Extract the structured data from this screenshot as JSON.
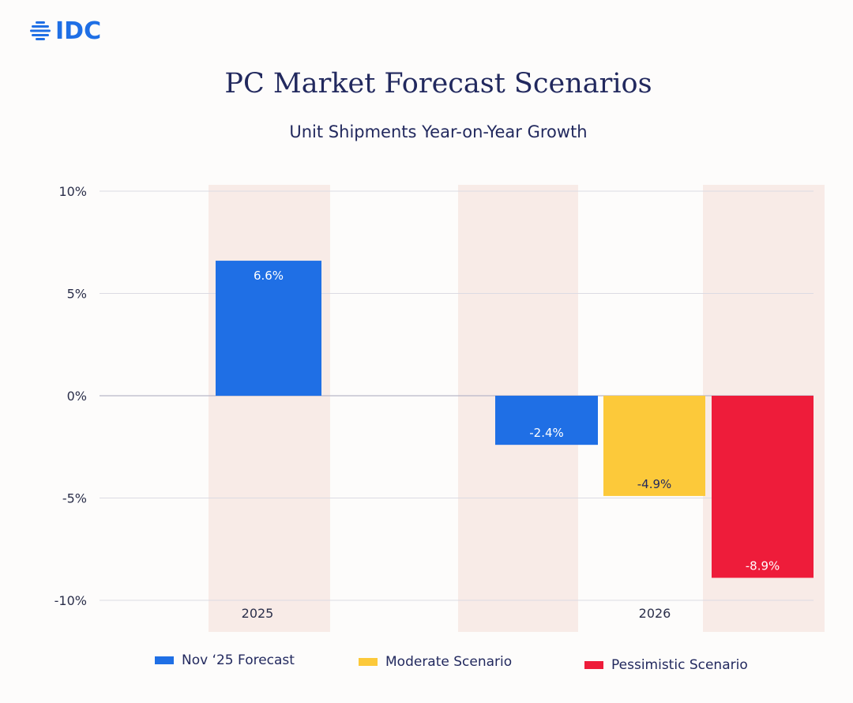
{
  "logo": {
    "text": "IDC",
    "icon": "globe-icon",
    "color": "#1f6fe5"
  },
  "chart_data": {
    "type": "bar",
    "title": "PC Market Forecast Scenarios",
    "subtitle": "Unit Shipments Year-on-Year Growth",
    "categories": [
      "2025",
      "2026"
    ],
    "series": [
      {
        "name": "Nov ‘25 Forecast",
        "color": "#1f6fe5",
        "values": [
          6.6,
          -2.4
        ],
        "labels": [
          "6.6%",
          "-2.4%"
        ],
        "label_color": "#ffffff"
      },
      {
        "name": "Moderate Scenario",
        "color": "#fcc93a",
        "values": [
          null,
          -4.9
        ],
        "labels": [
          "",
          "-4.9%"
        ],
        "label_color": "#22295e"
      },
      {
        "name": "Pessimistic Scenario",
        "color": "#ee1c3a",
        "values": [
          null,
          -8.9
        ],
        "labels": [
          "",
          "-8.9%"
        ],
        "label_color": "#ffffff"
      }
    ],
    "ylim": [
      -10,
      10
    ],
    "yticks": [
      10,
      5,
      0,
      -5,
      -10
    ],
    "ytick_labels": [
      "10%",
      "5%",
      "0%",
      "-5%",
      "-10%"
    ],
    "xlabel": "",
    "ylabel": "",
    "grid": true,
    "legend_position": "bottom"
  }
}
